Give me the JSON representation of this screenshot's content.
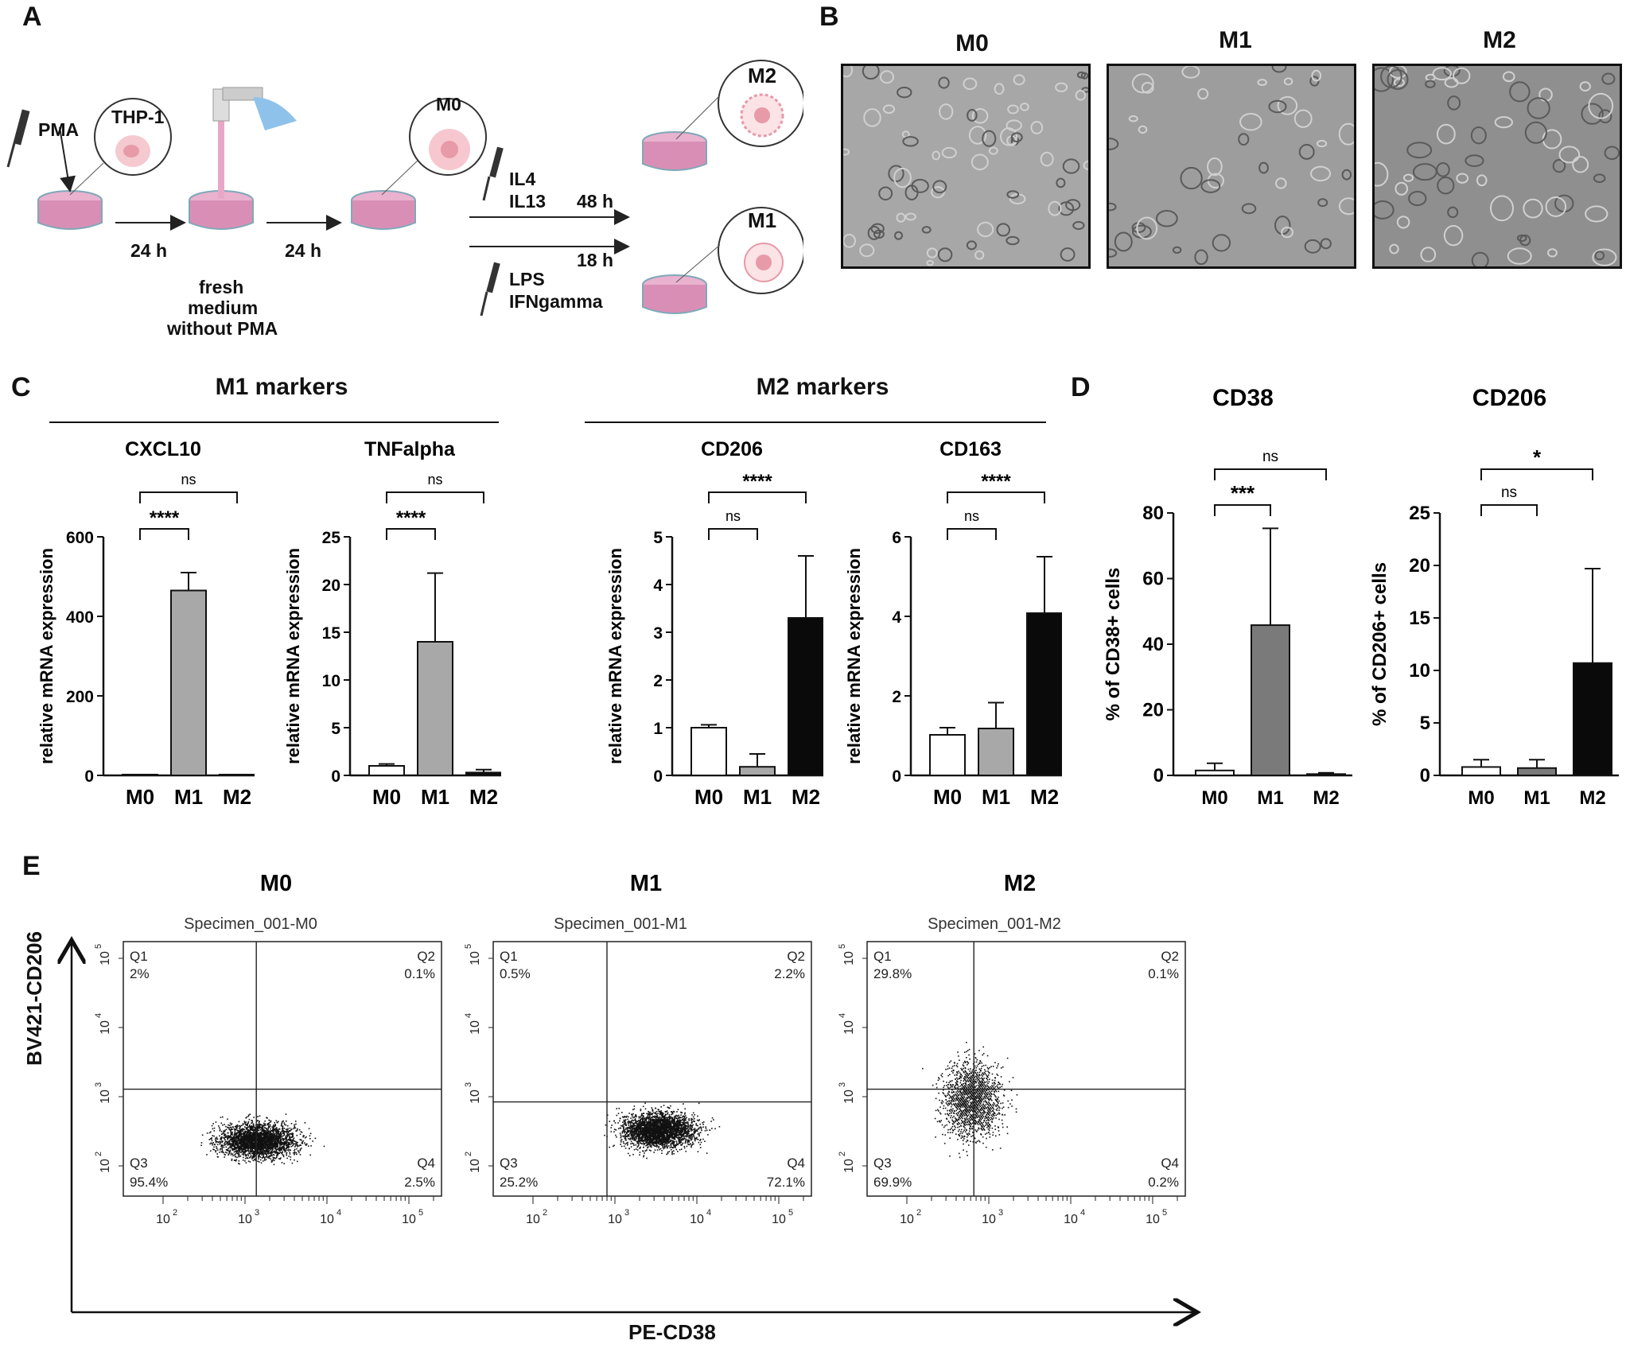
{
  "panels": {
    "a": "A",
    "b": "B",
    "c": "C",
    "d": "D",
    "e": "E"
  },
  "panelA": {
    "pma": "PMA",
    "thp1": "THP-1",
    "m0": "M0",
    "m1": "M1",
    "m2": "M2",
    "h24a": "24 h",
    "h24b": "24 h",
    "fresh1": "fresh",
    "fresh2": "medium",
    "fresh3": "without PMA",
    "il4": "IL4",
    "il13": "IL13",
    "h48": "48 h",
    "h18": "18 h",
    "lps": "LPS",
    "ifn": "IFNgamma"
  },
  "panelB": {
    "titles": [
      "M0",
      "M1",
      "M2"
    ]
  },
  "panelC": {
    "group1": "M1 markers",
    "group2": "M2 markers"
  },
  "panelD": {},
  "panelE": {
    "titles": [
      "M0",
      "M1",
      "M2"
    ],
    "specimens": [
      "Specimen_001-M0",
      "Specimen_001-M1",
      "Specimen_001-M2"
    ],
    "ylabel": "BV421-CD206",
    "xlabel": "PE-CD38",
    "quadrants": [
      {
        "q1": "Q1",
        "q1v": "2%",
        "q2": "Q2",
        "q2v": "0.1%",
        "q3": "Q3",
        "q3v": "95.4%",
        "q4": "Q4",
        "q4v": "2.5%"
      },
      {
        "q1": "Q1",
        "q1v": "0.5%",
        "q2": "Q2",
        "q2v": "2.2%",
        "q3": "Q3",
        "q3v": "25.2%",
        "q4": "Q4",
        "q4v": "72.1%"
      },
      {
        "q1": "Q1",
        "q1v": "29.8%",
        "q2": "Q2",
        "q2v": "0.1%",
        "q3": "Q3",
        "q3v": "69.9%",
        "q4": "Q4",
        "q4v": "0.2%"
      }
    ],
    "ticks": [
      "10",
      "2",
      "3",
      "4",
      "5"
    ]
  },
  "colors": {
    "white": "#ffffff",
    "lightgray": "#a8a8a8",
    "midgray": "#7a7a7a",
    "black": "#0a0a0a",
    "dish": "#d98fb5",
    "cell": "#f4c9cf"
  },
  "chart_data": [
    {
      "type": "bar",
      "title": "CXCL10",
      "ylabel": "relative mRNA expression",
      "categories": [
        "M0",
        "M1",
        "M2"
      ],
      "values": [
        1,
        465,
        1
      ],
      "errors": [
        0,
        45,
        0
      ],
      "ylim": [
        0,
        600
      ],
      "yticks": [
        "0",
        "200",
        "400",
        "600"
      ],
      "colors": [
        "#ffffff",
        "#a8a8a8",
        "#0a0a0a"
      ],
      "significance": [
        {
          "from": 0,
          "to": 1,
          "label": "****"
        },
        {
          "from": 0,
          "to": 2,
          "label": "ns"
        }
      ]
    },
    {
      "type": "bar",
      "title": "TNFalpha",
      "ylabel": "relative mRNA expression",
      "categories": [
        "M0",
        "M1",
        "M2"
      ],
      "values": [
        1,
        14,
        0.3
      ],
      "errors": [
        0.2,
        7.2,
        0.3
      ],
      "ylim": [
        0,
        25
      ],
      "yticks": [
        "0",
        "5",
        "10",
        "15",
        "20",
        "25"
      ],
      "colors": [
        "#ffffff",
        "#a8a8a8",
        "#0a0a0a"
      ],
      "significance": [
        {
          "from": 0,
          "to": 1,
          "label": "****"
        },
        {
          "from": 0,
          "to": 2,
          "label": "ns"
        }
      ]
    },
    {
      "type": "bar",
      "title": "CD206",
      "ylabel": "relative mRNA expression",
      "categories": [
        "M0",
        "M1",
        "M2"
      ],
      "values": [
        1,
        0.18,
        3.3
      ],
      "errors": [
        0.06,
        0.27,
        1.3
      ],
      "ylim": [
        0,
        5
      ],
      "yticks": [
        "0",
        "1",
        "2",
        "3",
        "4",
        "5"
      ],
      "colors": [
        "#ffffff",
        "#a8a8a8",
        "#0a0a0a"
      ],
      "significance": [
        {
          "from": 0,
          "to": 1,
          "label": "ns"
        },
        {
          "from": 0,
          "to": 2,
          "label": "****"
        }
      ]
    },
    {
      "type": "bar",
      "title": "CD163",
      "ylabel": "relative mRNA expression",
      "categories": [
        "M0",
        "M1",
        "M2"
      ],
      "values": [
        1.02,
        1.18,
        4.08
      ],
      "errors": [
        0.18,
        0.65,
        1.42
      ],
      "ylim": [
        0,
        6
      ],
      "yticks": [
        "0",
        "2",
        "4",
        "6"
      ],
      "colors": [
        "#ffffff",
        "#a8a8a8",
        "#0a0a0a"
      ],
      "significance": [
        {
          "from": 0,
          "to": 1,
          "label": "ns"
        },
        {
          "from": 0,
          "to": 2,
          "label": "****"
        }
      ]
    },
    {
      "type": "bar",
      "title": "CD38",
      "ylabel": "% of CD38+ cells",
      "categories": [
        "M0",
        "M1",
        "M2"
      ],
      "values": [
        1.5,
        45.8,
        0.4
      ],
      "errors": [
        2.2,
        29.5,
        0.4
      ],
      "ylim": [
        0,
        80
      ],
      "yticks": [
        "0",
        "20",
        "40",
        "60",
        "80"
      ],
      "colors": [
        "#ffffff",
        "#7a7a7a",
        "#0a0a0a"
      ],
      "significance": [
        {
          "from": 0,
          "to": 1,
          "label": "***"
        },
        {
          "from": 0,
          "to": 2,
          "label": "ns"
        }
      ]
    },
    {
      "type": "bar",
      "title": "CD206",
      "ylabel": "% of CD206+ cells",
      "categories": [
        "M0",
        "M1",
        "M2"
      ],
      "values": [
        0.8,
        0.7,
        10.7
      ],
      "errors": [
        0.7,
        0.8,
        9.0
      ],
      "ylim": [
        0,
        25
      ],
      "yticks": [
        "0",
        "5",
        "10",
        "15",
        "20",
        "25"
      ],
      "colors": [
        "#ffffff",
        "#7a7a7a",
        "#0a0a0a"
      ],
      "significance": [
        {
          "from": 0,
          "to": 1,
          "label": "ns"
        },
        {
          "from": 0,
          "to": 2,
          "label": "*"
        }
      ]
    }
  ]
}
